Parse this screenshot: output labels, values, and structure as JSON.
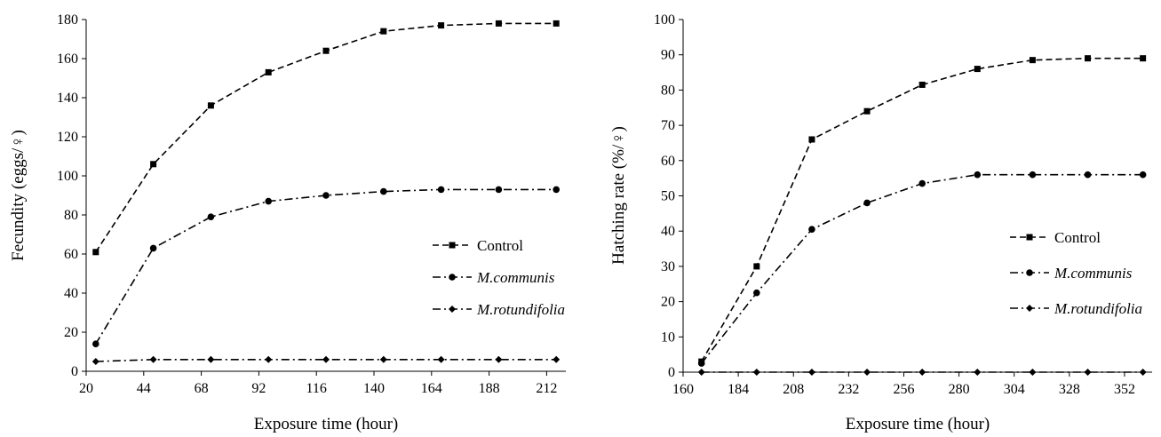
{
  "chart_data": [
    {
      "type": "line",
      "xlabel": "Exposure time (hour)",
      "ylabel": "Fecundity (eggs/♀)",
      "xlim": [
        20,
        220
      ],
      "ylim": [
        0,
        180
      ],
      "xticks": [
        "20",
        "44",
        "68",
        "92",
        "116",
        "140",
        "164",
        "188",
        "212"
      ],
      "yticks": [
        "0",
        "20",
        "40",
        "60",
        "80",
        "100",
        "120",
        "140",
        "160",
        "180"
      ],
      "x": [
        24,
        48,
        72,
        96,
        120,
        144,
        168,
        192,
        216
      ],
      "grid": false,
      "legend_position": "right",
      "series": [
        {
          "name": "Control",
          "style": "dashed",
          "marker": "square",
          "italic": false,
          "values": [
            61,
            106,
            136,
            153,
            164,
            174,
            177,
            178,
            178
          ]
        },
        {
          "name": "M.communis",
          "style": "dash-dot",
          "marker": "circle",
          "italic": true,
          "values": [
            14,
            63,
            79,
            87,
            90,
            92,
            93,
            93,
            93
          ]
        },
        {
          "name": "M.rotundifolia",
          "style": "dash-dot",
          "marker": "diamond",
          "italic": true,
          "values": [
            5,
            6,
            6,
            6,
            6,
            6,
            6,
            6,
            6
          ]
        }
      ]
    },
    {
      "type": "line",
      "xlabel": "Exposure time (hour)",
      "ylabel": "Hatching rate (%/♀)",
      "xlim": [
        160,
        364
      ],
      "ylim": [
        0,
        100
      ],
      "xticks": [
        "160",
        "184",
        "208",
        "232",
        "256",
        "280",
        "304",
        "328",
        "352"
      ],
      "yticks": [
        "0",
        "10",
        "20",
        "30",
        "40",
        "50",
        "60",
        "70",
        "80",
        "90",
        "100"
      ],
      "x": [
        168,
        192,
        216,
        240,
        264,
        288,
        312,
        336,
        360
      ],
      "grid": false,
      "legend_position": "right",
      "series": [
        {
          "name": "Control",
          "style": "dashed",
          "marker": "square",
          "italic": false,
          "values": [
            3,
            30,
            66,
            74,
            81.5,
            86,
            88.5,
            89,
            89
          ]
        },
        {
          "name": "M.communis",
          "style": "dash-dot",
          "marker": "circle",
          "italic": true,
          "values": [
            2.5,
            22.5,
            40.5,
            48,
            53.5,
            56,
            56,
            56,
            56
          ]
        },
        {
          "name": "M.rotundifolia",
          "style": "dash-dot",
          "marker": "diamond",
          "italic": true,
          "values": [
            0,
            0,
            0,
            0,
            0,
            0,
            0,
            0,
            0
          ]
        }
      ]
    }
  ]
}
